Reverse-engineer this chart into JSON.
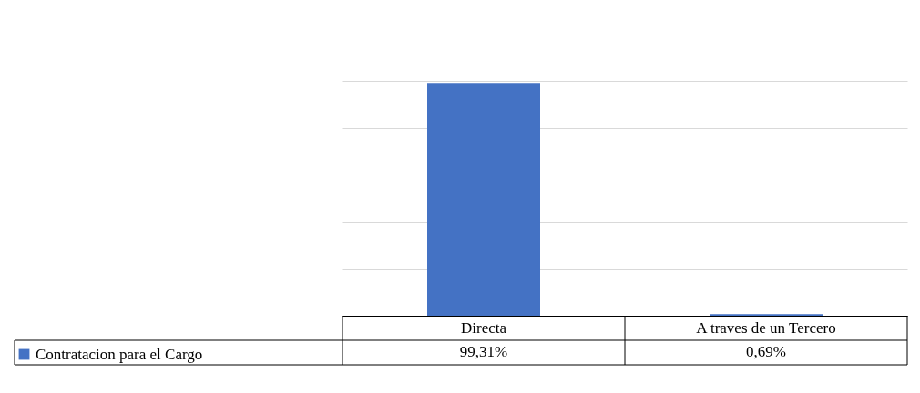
{
  "chart_data": {
    "type": "bar",
    "categories": [
      "Directa",
      "A traves de un Tercero"
    ],
    "series": [
      {
        "name": "Contratacion para el Cargo",
        "color": "#4472c4",
        "values": [
          99.31,
          0.69
        ],
        "value_labels": [
          "99,31%",
          "0,69%"
        ]
      }
    ],
    "ylim": [
      0,
      120
    ],
    "yticks": [
      {
        "value": 0,
        "label": null
      },
      {
        "value": 20,
        "label": null
      },
      {
        "value": 40,
        "label": null
      },
      {
        "value": 60,
        "label": null
      },
      {
        "value": 80,
        "label": null
      },
      {
        "value": 100,
        "label": null
      },
      {
        "value": 120,
        "label": null
      }
    ],
    "grid": "y",
    "tick_labels": "x",
    "legend": "bottom left"
  }
}
